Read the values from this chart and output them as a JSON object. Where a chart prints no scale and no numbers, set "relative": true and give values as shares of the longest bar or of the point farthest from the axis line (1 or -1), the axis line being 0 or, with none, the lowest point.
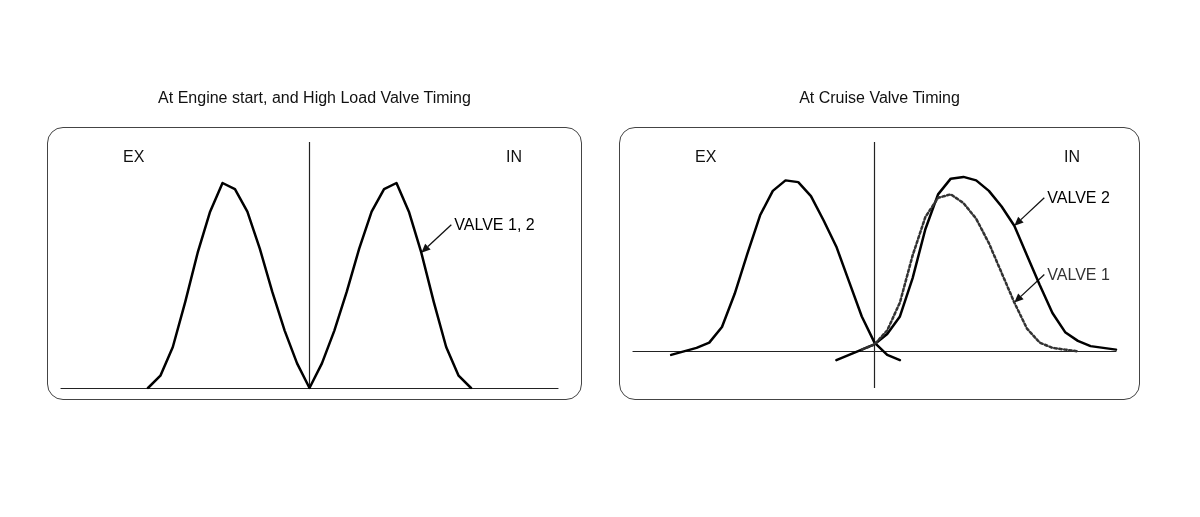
{
  "chart_data": [
    {
      "type": "line",
      "title": "At Engine start, and High Load Valve Timing",
      "relative": true,
      "line_style": "solid",
      "annotations": [
        "EX",
        "IN"
      ],
      "categories": [
        null,
        null,
        null,
        null,
        null,
        null,
        null,
        null,
        null,
        null,
        null,
        null,
        null,
        null,
        null,
        null,
        null,
        null,
        null,
        null,
        null,
        null,
        null,
        null,
        null,
        null,
        null,
        null,
        null,
        null,
        null,
        null,
        null,
        null,
        null,
        null,
        null,
        null,
        null,
        null,
        null
      ],
      "series": [
        {
          "color": "#000000",
          "values": [
            null,
            null,
            null,
            null,
            null,
            null,
            null,
            0,
            0.06,
            0.2,
            0.42,
            0.66,
            0.86,
            1,
            0.97,
            0.86,
            0.68,
            0.47,
            0.28,
            0.12,
            0,
            null,
            null,
            null,
            null,
            null,
            null,
            null,
            null,
            null,
            null,
            null,
            null,
            null,
            null,
            null,
            null,
            null,
            null,
            null,
            null
          ]
        },
        {
          "name": "VALVE 1, 2",
          "color": "#000000",
          "values": [
            null,
            null,
            null,
            null,
            null,
            null,
            null,
            null,
            null,
            null,
            null,
            null,
            null,
            null,
            null,
            null,
            null,
            null,
            null,
            null,
            0,
            0.12,
            0.28,
            0.47,
            0.68,
            0.86,
            0.97,
            1,
            0.86,
            0.66,
            0.42,
            0.2,
            0.06,
            0,
            null,
            null,
            null,
            null,
            null,
            null,
            null
          ]
        }
      ]
    },
    {
      "type": "line",
      "title": "At Cruise Valve Timing",
      "relative": true,
      "line_style": "solid",
      "annotations": [
        "EX",
        "IN"
      ],
      "categories": [
        null,
        null,
        null,
        null,
        null,
        null,
        null,
        null,
        null,
        null,
        null,
        null,
        null,
        null,
        null,
        null,
        null,
        null,
        null,
        null,
        null,
        null,
        null,
        null,
        null,
        null,
        null,
        null,
        null,
        null,
        null,
        null,
        null,
        null,
        null,
        null,
        null,
        null,
        null
      ],
      "series": [
        {
          "color": "#000000",
          "values": [
            null,
            null,
            null,
            -0.02,
            0,
            0.02,
            0.05,
            0.14,
            0.33,
            0.56,
            0.78,
            0.92,
            0.98,
            0.97,
            0.89,
            0.75,
            0.6,
            0.4,
            0.2,
            0.05,
            -0.02,
            -0.05,
            null,
            null,
            null,
            null,
            null,
            null,
            null,
            null,
            null,
            null,
            null,
            null,
            null,
            null,
            null,
            null,
            null
          ]
        },
        {
          "name": "VALVE 2",
          "color": "#000000",
          "values": [
            null,
            null,
            null,
            null,
            null,
            null,
            null,
            null,
            null,
            null,
            null,
            null,
            null,
            null,
            null,
            null,
            -0.05,
            -0.02,
            0.01,
            0.04,
            0.1,
            0.2,
            0.42,
            0.7,
            0.9,
            0.99,
            1,
            0.98,
            0.92,
            0.83,
            0.72,
            0.55,
            0.38,
            0.22,
            0.11,
            0.06,
            0.03,
            0.02,
            0.01
          ]
        },
        {
          "name": "VALVE 1",
          "color": "#333333",
          "line_style": "dotted",
          "values": [
            null,
            null,
            null,
            null,
            null,
            null,
            null,
            null,
            null,
            null,
            null,
            null,
            null,
            null,
            null,
            null,
            null,
            null,
            0.01,
            0.04,
            0.12,
            0.28,
            0.55,
            0.77,
            0.88,
            0.9,
            0.85,
            0.76,
            0.62,
            0.45,
            0.28,
            0.13,
            0.05,
            0.02,
            0.01,
            0,
            null,
            null,
            null
          ]
        }
      ]
    }
  ]
}
